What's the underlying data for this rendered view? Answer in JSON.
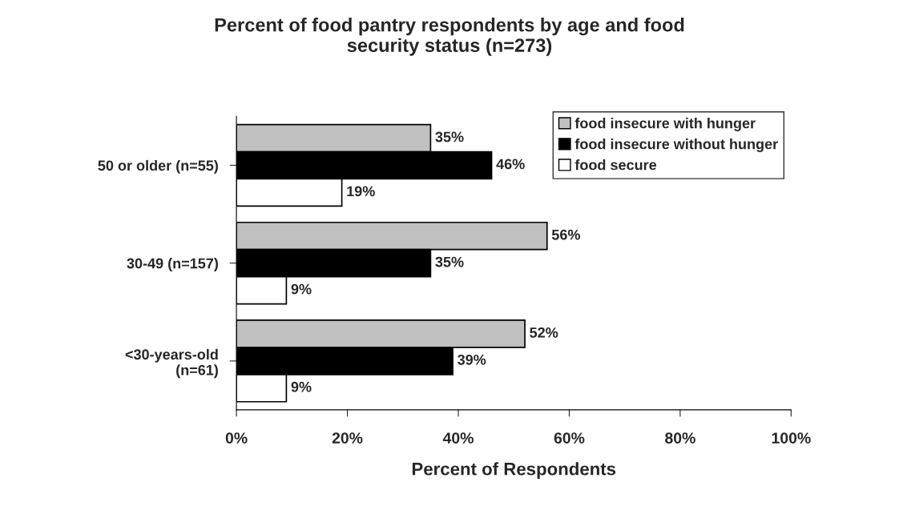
{
  "chart_data": {
    "type": "bar",
    "orientation": "horizontal",
    "title": "Percent of food pantry respondents by age and food\nsecurity status (n=273)",
    "xlabel": "Percent of Respondents",
    "categories": [
      "50 or older (n=55)",
      "30-49 (n=157)",
      "<30-years-old\n(n=61)"
    ],
    "series": [
      {
        "name": "food insecure with hunger",
        "color": "#c0c0c0",
        "values": [
          35,
          56,
          52
        ],
        "value_labels": [
          "35%",
          "56%",
          "52%"
        ]
      },
      {
        "name": "food insecure without hunger",
        "color": "#000000",
        "values": [
          46,
          35,
          39
        ],
        "value_labels": [
          "46%",
          "35%",
          "39%"
        ]
      },
      {
        "name": "food secure",
        "color": "#ffffff",
        "values": [
          19,
          9,
          9
        ],
        "value_labels": [
          "19%",
          "9%",
          "9%"
        ]
      }
    ],
    "xlim": [
      0,
      100
    ],
    "xticks": [
      {
        "value": 0,
        "label": "0%"
      },
      {
        "value": 20,
        "label": "20%"
      },
      {
        "value": 40,
        "label": "40%"
      },
      {
        "value": 60,
        "label": "60%"
      },
      {
        "value": 80,
        "label": "80%"
      },
      {
        "value": 100,
        "label": "100%"
      }
    ],
    "legend": "top right",
    "grid": false
  }
}
